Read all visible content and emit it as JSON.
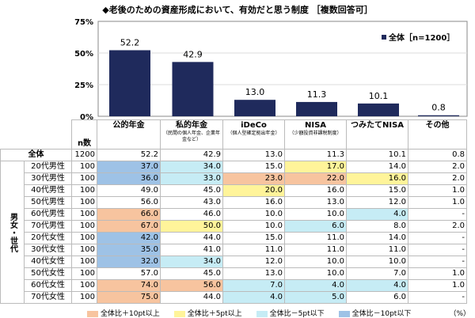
{
  "title": "◆老後のための資産形成において、有効だと思う制度 ［複数回答可］",
  "unit": "（%）",
  "colors": {
    "bar": "#1f2a5c",
    "plus10": "#f7c49f",
    "plus5": "#fff49a",
    "minus5": "#c6ecf5",
    "minus10": "#9ec2e6"
  },
  "chart_data": {
    "type": "bar",
    "categories": [
      "公的年金",
      "私的年金",
      "iDeCo",
      "NISA",
      "つみたてNISA",
      "その他"
    ],
    "category_notes": [
      "",
      "（民間の個人年金、企業年金など）",
      "（個人型確定拠出年金）",
      "（少額投資非課税制度）",
      "",
      ""
    ],
    "series": [
      {
        "name": "全体［n=1200］",
        "values": [
          52.2,
          42.9,
          13.0,
          11.3,
          10.1,
          0.8
        ]
      }
    ],
    "value_labels": [
      "52.2",
      "42.9",
      "13.0",
      "11.3",
      "10.1",
      "0.8"
    ],
    "ylim": [
      0,
      75
    ],
    "yticks": [
      "75%",
      "50%",
      "25%",
      "0%"
    ],
    "legend_position": "top-right"
  },
  "table": {
    "n_header": "n数",
    "group_label": "男女・世代",
    "rows": [
      {
        "label": "全体",
        "n": "1200",
        "vals": [
          "52.2",
          "42.9",
          "13.0",
          "11.3",
          "10.1",
          "0.8"
        ],
        "hl": [
          "",
          "",
          "",
          "",
          "",
          ""
        ]
      },
      {
        "label": "20代男性",
        "n": "100",
        "vals": [
          "37.0",
          "34.0",
          "15.0",
          "17.0",
          "14.0",
          "2.0"
        ],
        "hl": [
          "m10",
          "m5",
          "",
          "p5",
          "",
          ""
        ]
      },
      {
        "label": "30代男性",
        "n": "100",
        "vals": [
          "36.0",
          "33.0",
          "23.0",
          "22.0",
          "16.0",
          "2.0"
        ],
        "hl": [
          "m10",
          "m5",
          "p10",
          "p10",
          "p5",
          ""
        ]
      },
      {
        "label": "40代男性",
        "n": "100",
        "vals": [
          "49.0",
          "45.0",
          "20.0",
          "16.0",
          "15.0",
          "1.0"
        ],
        "hl": [
          "",
          "",
          "p5",
          "",
          "",
          ""
        ]
      },
      {
        "label": "50代男性",
        "n": "100",
        "vals": [
          "56.0",
          "43.0",
          "16.0",
          "13.0",
          "12.0",
          "1.0"
        ],
        "hl": [
          "",
          "",
          "",
          "",
          "",
          ""
        ]
      },
      {
        "label": "60代男性",
        "n": "100",
        "vals": [
          "66.0",
          "46.0",
          "10.0",
          "10.0",
          "4.0",
          "-"
        ],
        "hl": [
          "p10",
          "",
          "",
          "",
          "m5",
          ""
        ]
      },
      {
        "label": "70代男性",
        "n": "100",
        "vals": [
          "67.0",
          "50.0",
          "10.0",
          "6.0",
          "8.0",
          "2.0"
        ],
        "hl": [
          "p10",
          "p5",
          "",
          "m5",
          "",
          ""
        ]
      },
      {
        "label": "20代女性",
        "n": "100",
        "vals": [
          "42.0",
          "44.0",
          "15.0",
          "11.0",
          "14.0",
          "-"
        ],
        "hl": [
          "m10",
          "",
          "",
          "",
          "",
          ""
        ]
      },
      {
        "label": "30代女性",
        "n": "100",
        "vals": [
          "35.0",
          "41.0",
          "11.0",
          "11.0",
          "11.0",
          "-"
        ],
        "hl": [
          "m10",
          "",
          "",
          "",
          "",
          ""
        ]
      },
      {
        "label": "40代女性",
        "n": "100",
        "vals": [
          "32.0",
          "34.0",
          "12.0",
          "10.0",
          "10.0",
          "-"
        ],
        "hl": [
          "m10",
          "m5",
          "",
          "",
          "",
          ""
        ]
      },
      {
        "label": "50代女性",
        "n": "100",
        "vals": [
          "57.0",
          "45.0",
          "13.0",
          "10.0",
          "7.0",
          "1.0"
        ],
        "hl": [
          "",
          "",
          "",
          "",
          "",
          ""
        ]
      },
      {
        "label": "60代女性",
        "n": "100",
        "vals": [
          "74.0",
          "56.0",
          "7.0",
          "4.0",
          "4.0",
          "1.0"
        ],
        "hl": [
          "p10",
          "p10",
          "m5",
          "m5",
          "m5",
          ""
        ]
      },
      {
        "label": "70代女性",
        "n": "100",
        "vals": [
          "75.0",
          "44.0",
          "4.0",
          "5.0",
          "6.0",
          "-"
        ],
        "hl": [
          "p10",
          "",
          "m5",
          "m5",
          "",
          ""
        ]
      }
    ]
  },
  "legend": [
    {
      "key": "p10",
      "label": "全体比＋10pt以上"
    },
    {
      "key": "p5",
      "label": "全体比＋5pt以上"
    },
    {
      "key": "m5",
      "label": "全体比－5pt以下"
    },
    {
      "key": "m10",
      "label": "全体比－10pt以下"
    }
  ]
}
